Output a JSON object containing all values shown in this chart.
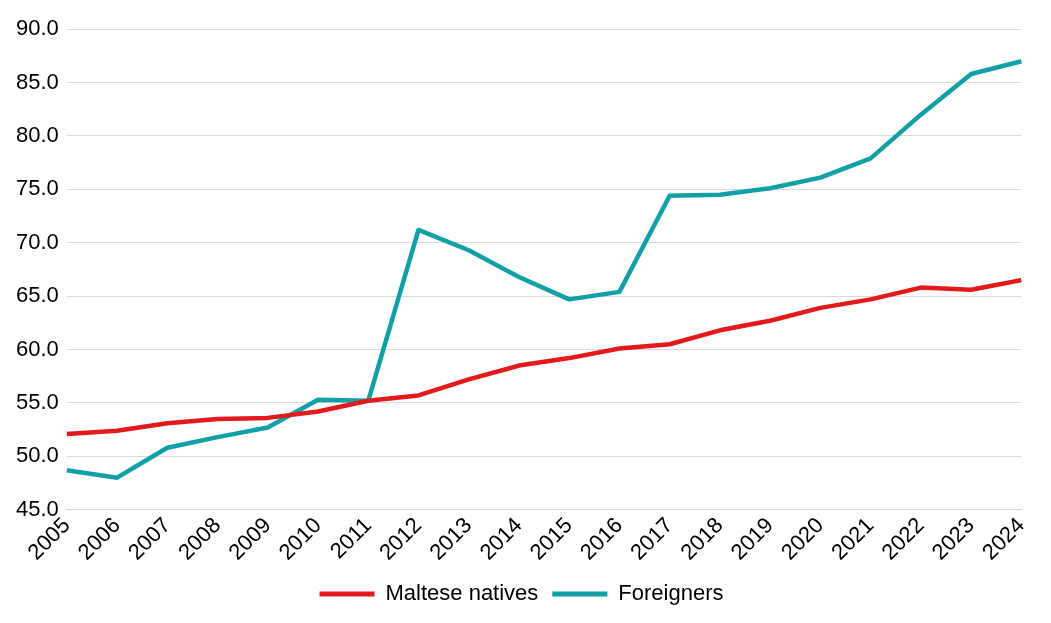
{
  "chart_data": {
    "type": "line",
    "categories": [
      "2005",
      "2006",
      "2007",
      "2008",
      "2009",
      "2010",
      "2011",
      "2012",
      "2013",
      "2014",
      "2015",
      "2016",
      "2017",
      "2018",
      "2019",
      "2020",
      "2021",
      "2022",
      "2023",
      "2024"
    ],
    "series": [
      {
        "name": "Maltese natives",
        "color": "#e3191c",
        "values": [
          52.1,
          52.4,
          53.1,
          53.5,
          53.6,
          54.2,
          55.2,
          55.7,
          57.2,
          58.5,
          59.2,
          60.1,
          60.5,
          61.8,
          62.7,
          63.9,
          64.7,
          65.8,
          65.6,
          66.5
        ]
      },
      {
        "name": "Foreigners",
        "color": "#11a0a6",
        "values": [
          48.7,
          48.0,
          50.8,
          51.8,
          52.7,
          55.3,
          55.2,
          71.2,
          69.3,
          66.8,
          64.7,
          65.4,
          74.4,
          74.5,
          75.1,
          76.1,
          77.9,
          82.0,
          85.8,
          87.0
        ]
      }
    ],
    "ylim": [
      45,
      90
    ],
    "yticks": [
      {
        "value": 45,
        "label": "45.0"
      },
      {
        "value": 50,
        "label": "50.0"
      },
      {
        "value": 55,
        "label": "55.0"
      },
      {
        "value": 60,
        "label": "60.0"
      },
      {
        "value": 65,
        "label": "65.0"
      },
      {
        "value": 70,
        "label": "70.0"
      },
      {
        "value": 75,
        "label": "75.0"
      },
      {
        "value": 80,
        "label": "80.0"
      },
      {
        "value": 85,
        "label": "85.0"
      },
      {
        "value": 90,
        "label": "90.0"
      }
    ],
    "grid": "y",
    "legend": "bottom",
    "marker": "none",
    "line_style": "solid"
  }
}
